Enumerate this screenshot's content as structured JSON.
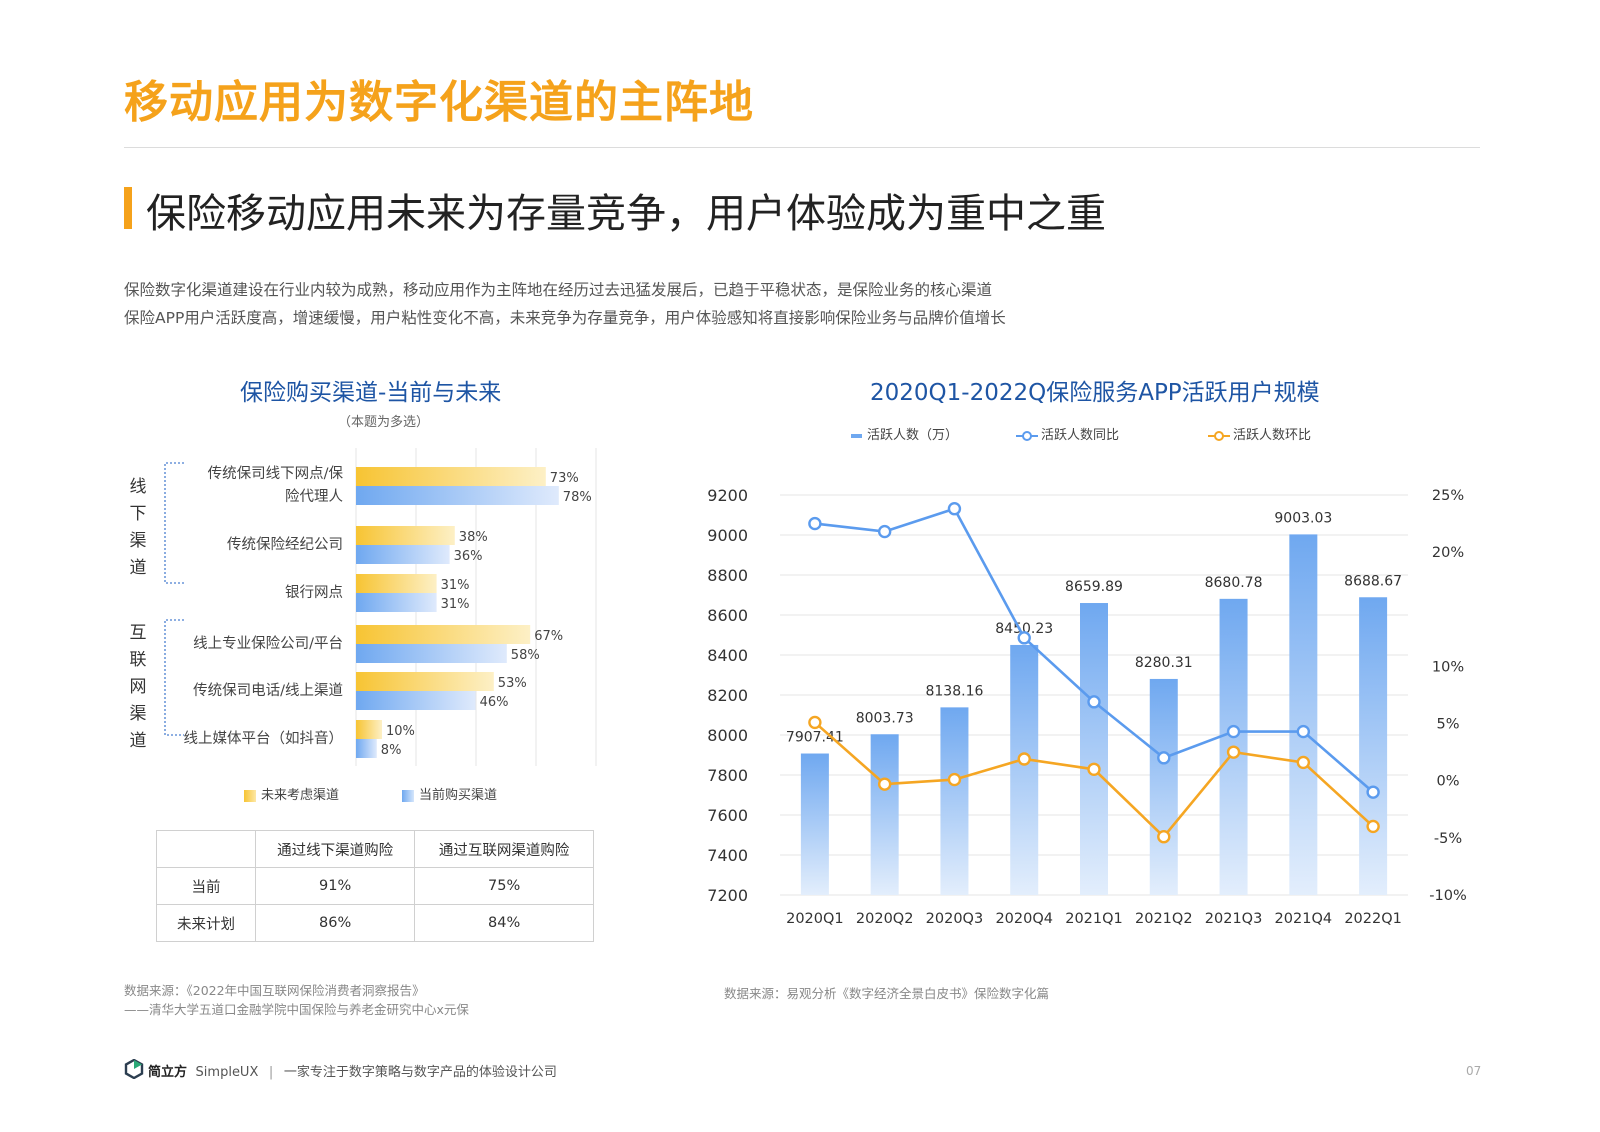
{
  "page": {
    "title": "移动应用为数字化渠道的主阵地",
    "subtitle": "保险移动应用未来为存量竞争，用户体验成为重中之重",
    "paragraphs": [
      "保险数字化渠道建设在行业内较为成熟，移动应用作为主阵地在经历过去迅猛发展后，已趋于平稳状态，是保险业务的核心渠道",
      "保险APP用户活跃度高，增速缓慢，用户粘性变化不高，未来竞争为存量竞争，用户体验感知将直接影响保险业务与品牌价值增长"
    ],
    "colors": {
      "accent": "#f5a21b",
      "title_blue": "#1e55a4",
      "bar_blue": "#6fa8f0",
      "bar_yellow": "#f7c433",
      "line_blue": "#5b9bee",
      "line_orange": "#f5a623"
    }
  },
  "bar_chart": {
    "title": "保险购买渠道-当前与未来",
    "note": "（本题为多选）",
    "groups": [
      {
        "label": [
          "线",
          "下",
          "渠",
          "道"
        ]
      },
      {
        "label": [
          "互",
          "联",
          "网",
          "渠",
          "道"
        ]
      }
    ],
    "legend": {
      "future": "未来考虑渠道",
      "current": "当前购买渠道"
    }
  },
  "summary_table": {
    "headers": [
      "",
      "通过线下渠道购险",
      "通过互联网渠道购险"
    ],
    "rows": [
      [
        "当前",
        "91%",
        "75%"
      ],
      [
        "未来计划",
        "86%",
        "84%"
      ]
    ]
  },
  "line_chart": {
    "title": "2020Q1-2022Q保险服务APP活跃用户规模",
    "legend": {
      "bar": "活跃人数（万）",
      "yoy": "活跃人数同比",
      "qoq": "活跃人数环比"
    }
  },
  "chart_data": [
    {
      "type": "bar",
      "orientation": "horizontal",
      "categories": [
        "传统保司线下网点/保险代理人",
        "传统保险经纪公司",
        "银行网点",
        "线上专业保险公司/平台",
        "传统保司电话/线上渠道",
        "线上媒体平台（如抖音）"
      ],
      "category_lines": [
        [
          "传统保司线下网点/保",
          "险代理人"
        ],
        [
          "传统保险经纪公司"
        ],
        [
          "银行网点"
        ],
        [
          "线上专业保险公司/平台"
        ],
        [
          "传统保司电话/线上渠道"
        ],
        [
          "线上媒体平台（如抖音）"
        ]
      ],
      "series": [
        {
          "name": "未来考虑渠道",
          "values": [
            73,
            38,
            31,
            67,
            53,
            10
          ],
          "labels": [
            "73%",
            "38%",
            "31%",
            "67%",
            "53%",
            "10%"
          ],
          "color": "#f7c433"
        },
        {
          "name": "当前购买渠道",
          "values": [
            78,
            36,
            31,
            58,
            46,
            8
          ],
          "labels": [
            "78%",
            "36%",
            "31%",
            "58%",
            "46%",
            "8%"
          ],
          "color": "#6fa8f0"
        }
      ],
      "xlim": [
        0,
        100
      ],
      "grid": true
    },
    {
      "type": "bar",
      "categories": [
        "2020Q1",
        "2020Q2",
        "2020Q3",
        "2020Q4",
        "2021Q1",
        "2021Q2",
        "2021Q3",
        "2021Q4",
        "2022Q1"
      ],
      "series": [
        {
          "name": "活跃人数（万）",
          "type": "bar",
          "axis": "left",
          "values": [
            7907.41,
            8003.73,
            8138.16,
            8450.23,
            8659.89,
            8280.31,
            8680.78,
            9003.03,
            8688.67
          ],
          "labels": [
            "7907.41",
            "8003.73",
            "8138.16",
            "8450.23",
            "8659.89",
            "8280.31",
            "8680.78",
            "9003.03",
            "8688.67"
          ]
        },
        {
          "name": "活跃人数同比",
          "type": "line",
          "axis": "right",
          "values": [
            22.5,
            21.8,
            23.8,
            12.5,
            6.9,
            2.0,
            4.3,
            4.3,
            -1.0
          ],
          "color": "#5b9bee"
        },
        {
          "name": "活跃人数环比",
          "type": "line",
          "axis": "right",
          "values": [
            5.1,
            -0.3,
            0.1,
            1.9,
            1.0,
            -4.9,
            2.5,
            1.6,
            -4.0
          ],
          "color": "#f5a623"
        }
      ],
      "ylim_left": [
        7200,
        9200
      ],
      "yticks_left": [
        "9200",
        "9000",
        "8800",
        "8600",
        "8400",
        "8200",
        "8000",
        "7800",
        "7600",
        "7400",
        "7200"
      ],
      "ylim_right": [
        -10,
        25
      ],
      "yticks_right": [
        "25%",
        "20%",
        "10%",
        "5%",
        "0%",
        "-5%",
        "-10%"
      ],
      "yticks_right_values": [
        25,
        20,
        10,
        5,
        0,
        -5,
        -10
      ],
      "grid": true,
      "legend_position": "top"
    }
  ],
  "sources": {
    "left_line1": "数据来源：《2022年中国互联网保险消费者洞察报告》",
    "left_line2": "——清华大学五道口金融学院中国保险与养老金研究中心x元保",
    "right": "数据来源：易观分析《数字经济全景白皮书》保险数字化篇"
  },
  "footer": {
    "brand": "简立方",
    "brand_en": "SimpleUX",
    "tagline": "一家专注于数字策略与数字产品的体验设计公司",
    "page_number": "07"
  }
}
